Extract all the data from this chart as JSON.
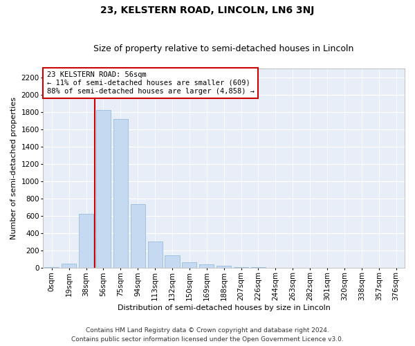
{
  "title": "23, KELSTERN ROAD, LINCOLN, LN6 3NJ",
  "subtitle": "Size of property relative to semi-detached houses in Lincoln",
  "xlabel": "Distribution of semi-detached houses by size in Lincoln",
  "ylabel": "Number of semi-detached properties",
  "footnote1": "Contains HM Land Registry data © Crown copyright and database right 2024.",
  "footnote2": "Contains public sector information licensed under the Open Government Licence v3.0.",
  "annotation_title": "23 KELSTERN ROAD: 56sqm",
  "annotation_line1": "← 11% of semi-detached houses are smaller (609)",
  "annotation_line2": "88% of semi-detached houses are larger (4,858) →",
  "bar_labels": [
    "0sqm",
    "19sqm",
    "38sqm",
    "56sqm",
    "75sqm",
    "94sqm",
    "113sqm",
    "132sqm",
    "150sqm",
    "169sqm",
    "188sqm",
    "207sqm",
    "226sqm",
    "244sqm",
    "263sqm",
    "282sqm",
    "301sqm",
    "320sqm",
    "338sqm",
    "357sqm",
    "376sqm"
  ],
  "bar_values": [
    8,
    50,
    620,
    1820,
    1720,
    730,
    300,
    140,
    65,
    40,
    20,
    10,
    5,
    2,
    1,
    0,
    0,
    0,
    0,
    0,
    0
  ],
  "bar_color": "#c5d9f0",
  "bar_edge_color": "#8ab4d8",
  "marker_color": "#cc0000",
  "ylim": [
    0,
    2300
  ],
  "yticks": [
    0,
    200,
    400,
    600,
    800,
    1000,
    1200,
    1400,
    1600,
    1800,
    2000,
    2200
  ],
  "background_color": "#e8eef8",
  "grid_color": "#ffffff",
  "title_fontsize": 10,
  "subtitle_fontsize": 9,
  "axis_label_fontsize": 8,
  "tick_fontsize": 7.5,
  "annotation_fontsize": 7.5,
  "footnote_fontsize": 6.5
}
